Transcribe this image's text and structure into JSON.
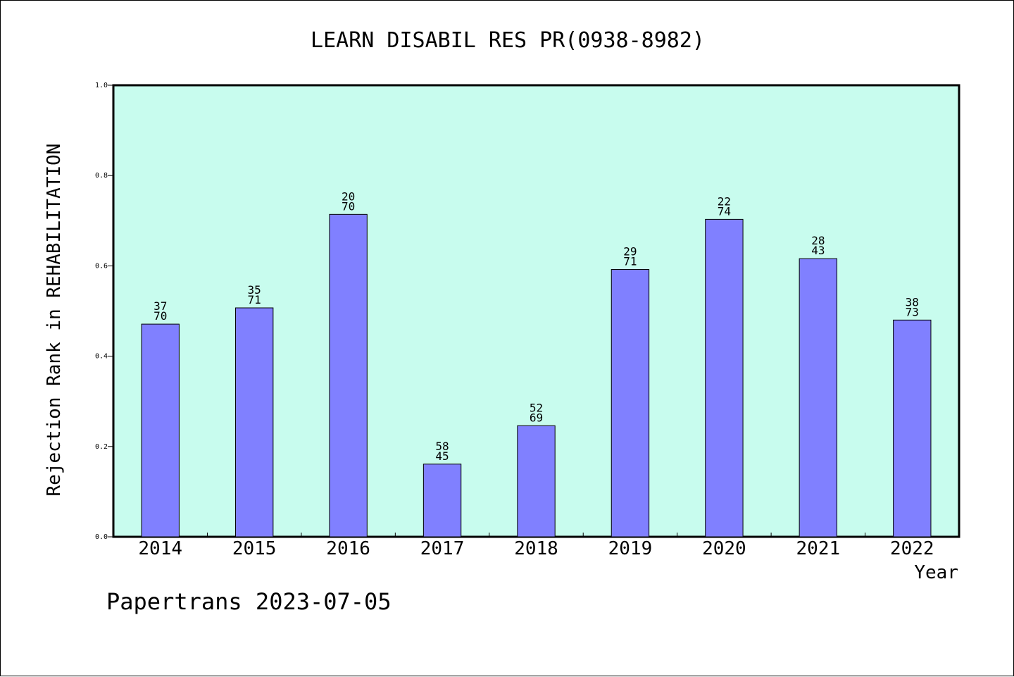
{
  "footer": {
    "text": "Papertrans 2023-07-05"
  },
  "colors": {
    "plot_background": "#c8fcee",
    "bar_fill": "#8080ff",
    "bar_stroke": "#000000",
    "axis": "#000000"
  },
  "chart_data": {
    "type": "bar",
    "title": "LEARN DISABIL RES PR(0938-8982)",
    "xlabel": "Year",
    "ylabel": "Rejection Rank in REHABILITATION",
    "ylim": [
      0,
      1.0
    ],
    "yticks": [
      "0.0",
      "0.2",
      "0.4",
      "0.6",
      "0.8",
      "1.0"
    ],
    "grid": false,
    "categories": [
      "2014",
      "2015",
      "2016",
      "2017",
      "2018",
      "2019",
      "2020",
      "2021",
      "2022"
    ],
    "values": [
      0.471,
      0.507,
      0.714,
      0.161,
      0.246,
      0.592,
      0.703,
      0.616,
      0.48
    ],
    "label_top": [
      "37",
      "35",
      "20",
      "58",
      "52",
      "29",
      "22",
      "28",
      "38"
    ],
    "label_bottom": [
      "70",
      "71",
      "70",
      "45",
      "69",
      "71",
      "74",
      "43",
      "73"
    ]
  }
}
